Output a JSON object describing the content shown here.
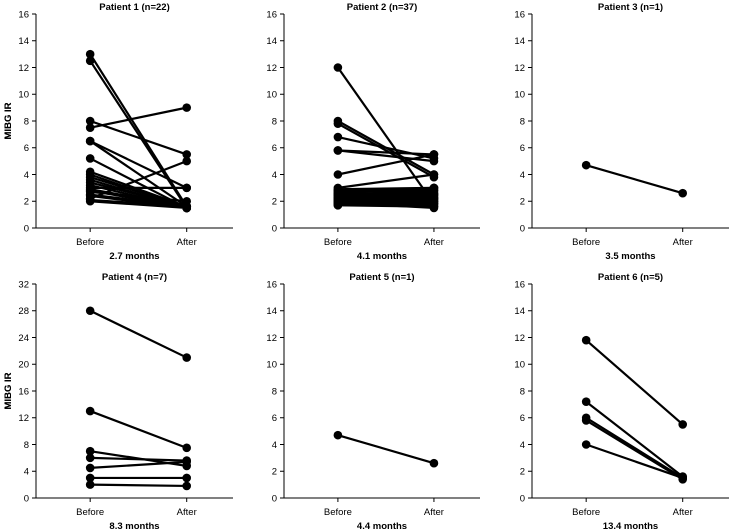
{
  "chart_data": [
    {
      "type": "line",
      "title": "Patient 1 (n=22)",
      "xlabel": "2.7 months",
      "ylabel": "MIBG IR",
      "categories": [
        "Before",
        "After"
      ],
      "ylim": [
        0,
        16
      ],
      "yticks": [
        0,
        2,
        4,
        6,
        8,
        10,
        12,
        14,
        16
      ],
      "series": [
        {
          "values": [
            13.0,
            1.6
          ]
        },
        {
          "values": [
            12.5,
            1.5
          ]
        },
        {
          "values": [
            8.0,
            5.5
          ]
        },
        {
          "values": [
            7.5,
            9.0
          ]
        },
        {
          "values": [
            6.5,
            3.0
          ]
        },
        {
          "values": [
            6.5,
            1.6
          ]
        },
        {
          "values": [
            5.2,
            1.5
          ]
        },
        {
          "values": [
            4.2,
            1.6
          ]
        },
        {
          "values": [
            4.0,
            1.5
          ]
        },
        {
          "values": [
            3.8,
            1.6
          ]
        },
        {
          "values": [
            3.6,
            1.5
          ]
        },
        {
          "values": [
            3.4,
            1.6
          ]
        },
        {
          "values": [
            3.2,
            1.5
          ]
        },
        {
          "values": [
            3.0,
            3.0
          ]
        },
        {
          "values": [
            2.9,
            1.6
          ]
        },
        {
          "values": [
            2.8,
            1.5
          ]
        },
        {
          "values": [
            2.7,
            2.0
          ]
        },
        {
          "values": [
            2.5,
            1.6
          ]
        },
        {
          "values": [
            2.4,
            1.5
          ]
        },
        {
          "values": [
            2.2,
            5.0
          ]
        },
        {
          "values": [
            2.1,
            1.6
          ]
        },
        {
          "values": [
            2.0,
            1.5
          ]
        }
      ]
    },
    {
      "type": "line",
      "title": "Patient 2 (n=37)",
      "xlabel": "4.1 months",
      "ylabel": "MIBG IR",
      "categories": [
        "Before",
        "After"
      ],
      "ylim": [
        0,
        16
      ],
      "yticks": [
        0,
        2,
        4,
        6,
        8,
        10,
        12,
        14,
        16
      ],
      "series": [
        {
          "values": [
            12.0,
            1.8
          ]
        },
        {
          "values": [
            8.0,
            4.0
          ]
        },
        {
          "values": [
            7.8,
            3.8
          ]
        },
        {
          "values": [
            6.8,
            5.2
          ]
        },
        {
          "values": [
            5.8,
            5.5
          ]
        },
        {
          "values": [
            5.8,
            5.0
          ]
        },
        {
          "values": [
            4.0,
            5.5
          ]
        },
        {
          "values": [
            3.0,
            4.0
          ]
        },
        {
          "values": [
            2.9,
            3.0
          ]
        },
        {
          "values": [
            2.8,
            2.9
          ]
        },
        {
          "values": [
            2.8,
            2.6
          ]
        },
        {
          "values": [
            2.7,
            2.8
          ]
        },
        {
          "values": [
            2.6,
            2.5
          ]
        },
        {
          "values": [
            2.6,
            2.2
          ]
        },
        {
          "values": [
            2.5,
            2.7
          ]
        },
        {
          "values": [
            2.5,
            2.4
          ]
        },
        {
          "values": [
            2.4,
            2.6
          ]
        },
        {
          "values": [
            2.4,
            2.0
          ]
        },
        {
          "values": [
            2.3,
            2.3
          ]
        },
        {
          "values": [
            2.3,
            1.8
          ]
        },
        {
          "values": [
            2.2,
            2.5
          ]
        },
        {
          "values": [
            2.2,
            2.1
          ]
        },
        {
          "values": [
            2.1,
            2.4
          ]
        },
        {
          "values": [
            2.1,
            1.7
          ]
        },
        {
          "values": [
            2.0,
            2.2
          ]
        },
        {
          "values": [
            2.0,
            1.6
          ]
        },
        {
          "values": [
            2.0,
            2.0
          ]
        },
        {
          "values": [
            1.9,
            2.3
          ]
        },
        {
          "values": [
            1.9,
            1.9
          ]
        },
        {
          "values": [
            1.9,
            1.5
          ]
        },
        {
          "values": [
            1.8,
            2.1
          ]
        },
        {
          "values": [
            1.8,
            1.8
          ]
        },
        {
          "values": [
            1.8,
            3.0
          ]
        },
        {
          "values": [
            1.7,
            2.0
          ]
        },
        {
          "values": [
            1.7,
            1.6
          ]
        },
        {
          "values": [
            2.6,
            3.0
          ]
        },
        {
          "values": [
            2.2,
            2.8
          ]
        }
      ]
    },
    {
      "type": "line",
      "title": "Patient 3 (n=1)",
      "xlabel": "3.5 months",
      "ylabel": "",
      "categories": [
        "Before",
        "After"
      ],
      "ylim": [
        0,
        16
      ],
      "yticks": [
        0,
        2,
        4,
        6,
        8,
        10,
        12,
        14,
        16
      ],
      "series": [
        {
          "values": [
            4.7,
            2.6
          ]
        }
      ]
    },
    {
      "type": "line",
      "title": "Patient 4 (n=7)",
      "xlabel": "8.3 months",
      "ylabel": "MIBG IR",
      "categories": [
        "Before",
        "After"
      ],
      "ylim": [
        0,
        32
      ],
      "yticks": [
        0,
        4,
        8,
        12,
        16,
        20,
        24,
        28,
        32
      ],
      "series": [
        {
          "values": [
            28.0,
            21.0
          ]
        },
        {
          "values": [
            13.0,
            7.5
          ]
        },
        {
          "values": [
            7.0,
            4.8
          ]
        },
        {
          "values": [
            6.0,
            5.6
          ]
        },
        {
          "values": [
            4.5,
            5.4
          ]
        },
        {
          "values": [
            3.0,
            3.0
          ]
        },
        {
          "values": [
            2.0,
            1.8
          ]
        }
      ]
    },
    {
      "type": "line",
      "title": "Patient 5 (n=1)",
      "xlabel": "4.4 months",
      "ylabel": "",
      "categories": [
        "Before",
        "After"
      ],
      "ylim": [
        0,
        16
      ],
      "yticks": [
        0,
        2,
        4,
        6,
        8,
        10,
        12,
        14,
        16
      ],
      "series": [
        {
          "values": [
            4.7,
            2.6
          ]
        }
      ]
    },
    {
      "type": "line",
      "title": "Patient 6 (n=5)",
      "xlabel": "13.4 months",
      "ylabel": "MIBG IR",
      "categories": [
        "Before",
        "After"
      ],
      "ylim": [
        0,
        16
      ],
      "yticks": [
        0,
        2,
        4,
        6,
        8,
        10,
        12,
        14,
        16
      ],
      "series": [
        {
          "values": [
            11.8,
            5.5
          ]
        },
        {
          "values": [
            7.2,
            1.6
          ]
        },
        {
          "values": [
            6.0,
            1.5
          ]
        },
        {
          "values": [
            5.8,
            1.4
          ]
        },
        {
          "values": [
            4.0,
            1.5
          ]
        }
      ]
    }
  ]
}
